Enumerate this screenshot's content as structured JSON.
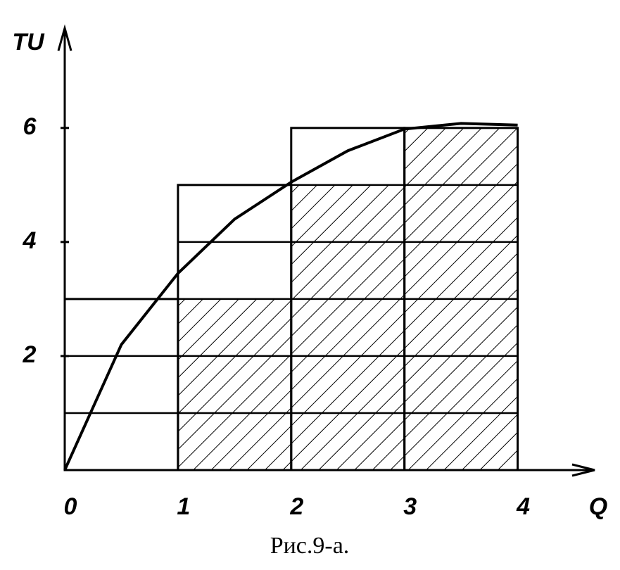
{
  "chart_data": {
    "type": "bar",
    "caption": "Рис.9-а.",
    "x_label": "Q",
    "y_label": "TU",
    "categories": [
      1,
      2,
      3,
      4
    ],
    "values": [
      3,
      5,
      6,
      6
    ],
    "curve": {
      "x": [
        0,
        0.5,
        1,
        1.5,
        2,
        2.5,
        3,
        3.5,
        4
      ],
      "values": [
        0,
        2.2,
        3.45,
        4.4,
        5.05,
        5.6,
        5.98,
        6.08,
        6.05
      ]
    },
    "xlim": [
      0,
      4.68
    ],
    "ylim": [
      0,
      7.75
    ],
    "xticks": [
      0,
      1,
      2,
      3,
      4
    ],
    "yticks": [
      2,
      4,
      6
    ],
    "color": "#000000"
  }
}
